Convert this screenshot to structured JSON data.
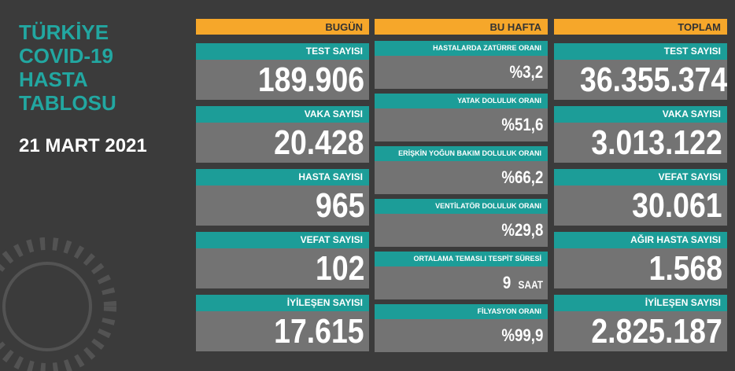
{
  "title": [
    "TÜRKİYE",
    "COVID-19",
    "HASTA",
    "TABLOSU"
  ],
  "date": "21 MART 2021",
  "columns": [
    {
      "header": "BUGÜN",
      "items": [
        {
          "label": "TEST SAYISI",
          "value": "189.906"
        },
        {
          "label": "VAKA SAYISI",
          "value": "20.428"
        },
        {
          "label": "HASTA SAYISI",
          "value": "965"
        },
        {
          "label": "VEFAT SAYISI",
          "value": "102"
        },
        {
          "label": "İYİLEŞEN SAYISI",
          "value": "17.615"
        }
      ]
    },
    {
      "header": "BU HAFTA",
      "items": [
        {
          "label": "HASTALARDA ZATÜRRE ORANI",
          "value": "%3,2"
        },
        {
          "label": "YATAK DOLULUK ORANI",
          "value": "%51,6"
        },
        {
          "label": "ERİŞKİN YOĞUN BAKIM DOLULUK ORANI",
          "value": "%66,2"
        },
        {
          "label": "VENTİLATÖR DOLULUK ORANI",
          "value": "%29,8"
        },
        {
          "label": "ORTALAMA TEMASLI TESPİT SÜRESİ",
          "value": "9",
          "unit": "SAAT"
        },
        {
          "label": "FİLYASYON ORANI",
          "value": "%99,9"
        }
      ]
    },
    {
      "header": "TOPLAM",
      "items": [
        {
          "label": "TEST SAYISI",
          "value": "36.355.374"
        },
        {
          "label": "VAKA SAYISI",
          "value": "3.013.122"
        },
        {
          "label": "VEFAT SAYISI",
          "value": "30.061"
        },
        {
          "label": "AĞIR HASTA SAYISI",
          "value": "1.568"
        },
        {
          "label": "İYİLEŞEN SAYISI",
          "value": "2.825.187"
        }
      ]
    }
  ]
}
